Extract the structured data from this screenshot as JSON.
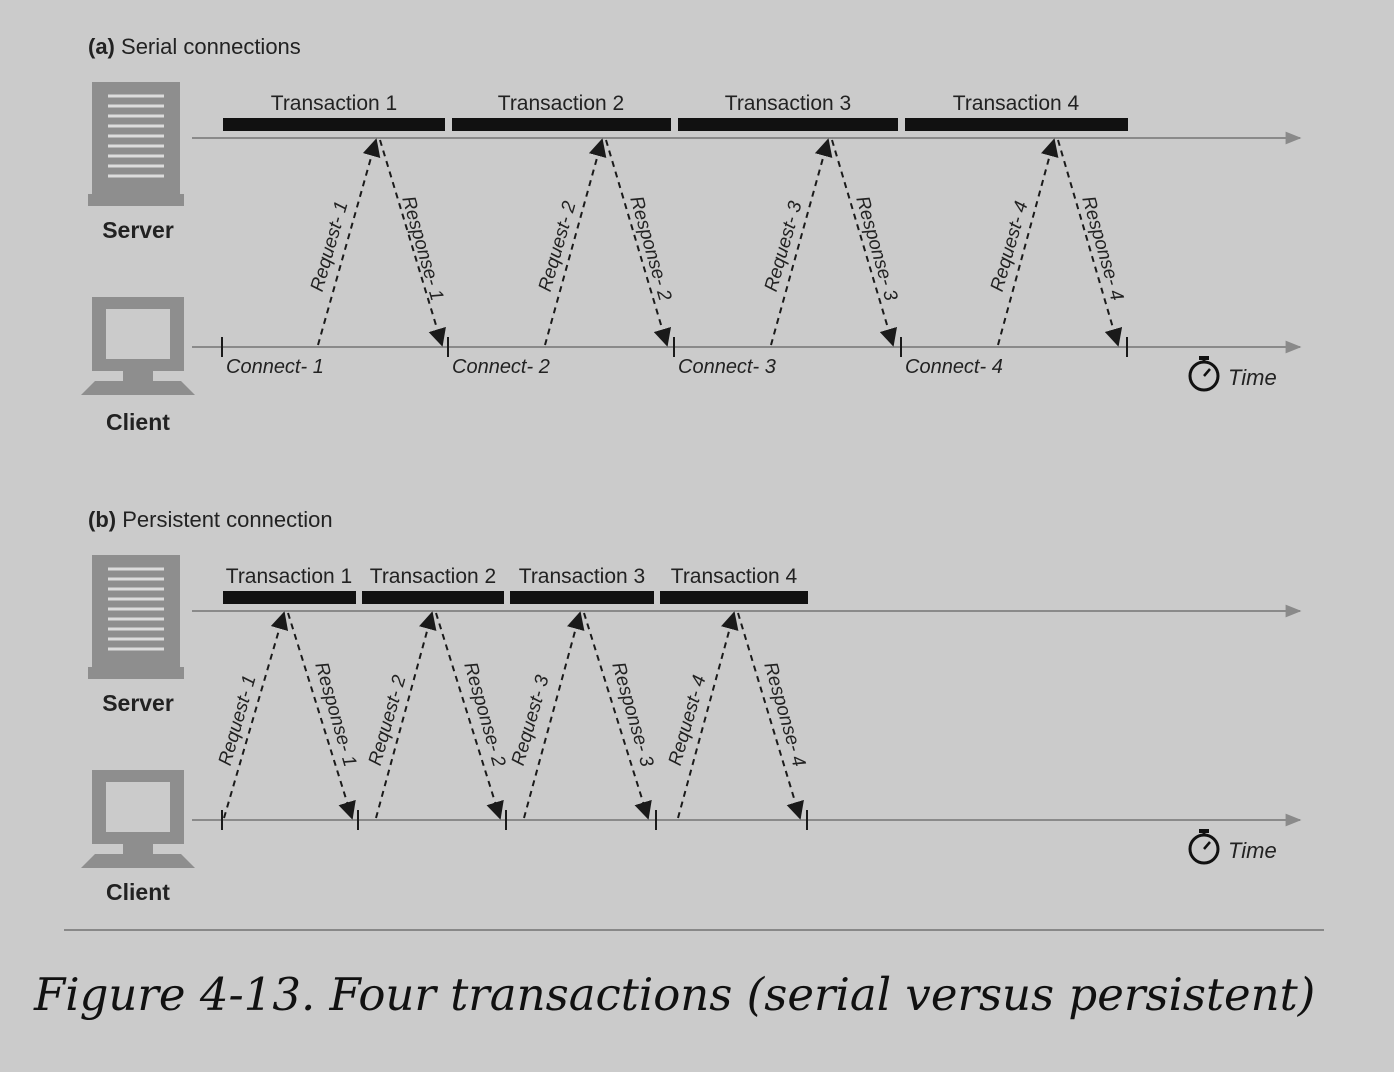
{
  "sections": [
    {
      "tag": "(a)",
      "title": "Serial connections",
      "server_label": "Server",
      "client_label": "Client",
      "time_label": "Time",
      "transactions": [
        "Transaction 1",
        "Transaction 2",
        "Transaction 3",
        "Transaction 4"
      ],
      "requests": [
        "Request- 1",
        "Request- 2",
        "Request- 3",
        "Request- 4"
      ],
      "responses": [
        "Response- 1",
        "Response- 2",
        "Response- 3",
        "Response- 4"
      ],
      "connects": [
        "Connect- 1",
        "Connect- 2",
        "Connect- 3",
        "Connect- 4"
      ]
    },
    {
      "tag": "(b)",
      "title": "Persistent connection",
      "server_label": "Server",
      "client_label": "Client",
      "time_label": "Time",
      "transactions": [
        "Transaction 1",
        "Transaction 2",
        "Transaction 3",
        "Transaction 4"
      ],
      "requests": [
        "Request- 1",
        "Request- 2",
        "Request- 3",
        "Request- 4"
      ],
      "responses": [
        "Response- 1",
        "Response- 2",
        "Response- 3",
        "Response- 4"
      ],
      "connects": []
    }
  ],
  "caption": "Figure 4-13. Four transactions (serial versus persistent)",
  "colors": {
    "background": "#cbcbcb",
    "icon": "#8e8e8e",
    "bar": "#111111",
    "axis": "#8a8a8a"
  }
}
